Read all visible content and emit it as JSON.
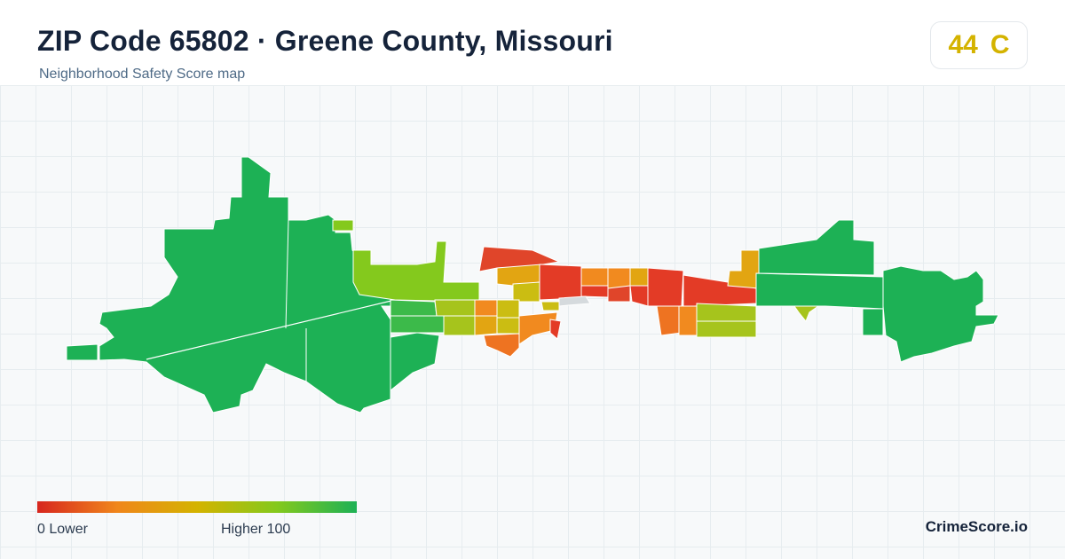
{
  "header": {
    "title": "ZIP Code 65802 · Greene County, Missouri",
    "subtitle": "Neighborhood Safety Score map"
  },
  "score_badge": {
    "score": "44",
    "grade": "C",
    "color": "#d4b300"
  },
  "legend": {
    "min_label": "0  Lower",
    "max_label": "Higher  100",
    "colors": [
      "#d7261e",
      "#f0861b",
      "#d4b300",
      "#84c91d",
      "#1db155"
    ]
  },
  "map": {
    "colors": {
      "low": "#e0452a",
      "red": "#e33b26",
      "orange": "#f18a1f",
      "dark_orange": "#ee7321",
      "amber": "#e2a512",
      "yellow": "#cbbd12",
      "lime": "#a6c41c",
      "light_green": "#84c91d",
      "green": "#1db155",
      "mid_green": "#3cba4a",
      "gray": "#d5dadd"
    }
  },
  "brand": {
    "name": "CrimeScore.io"
  }
}
